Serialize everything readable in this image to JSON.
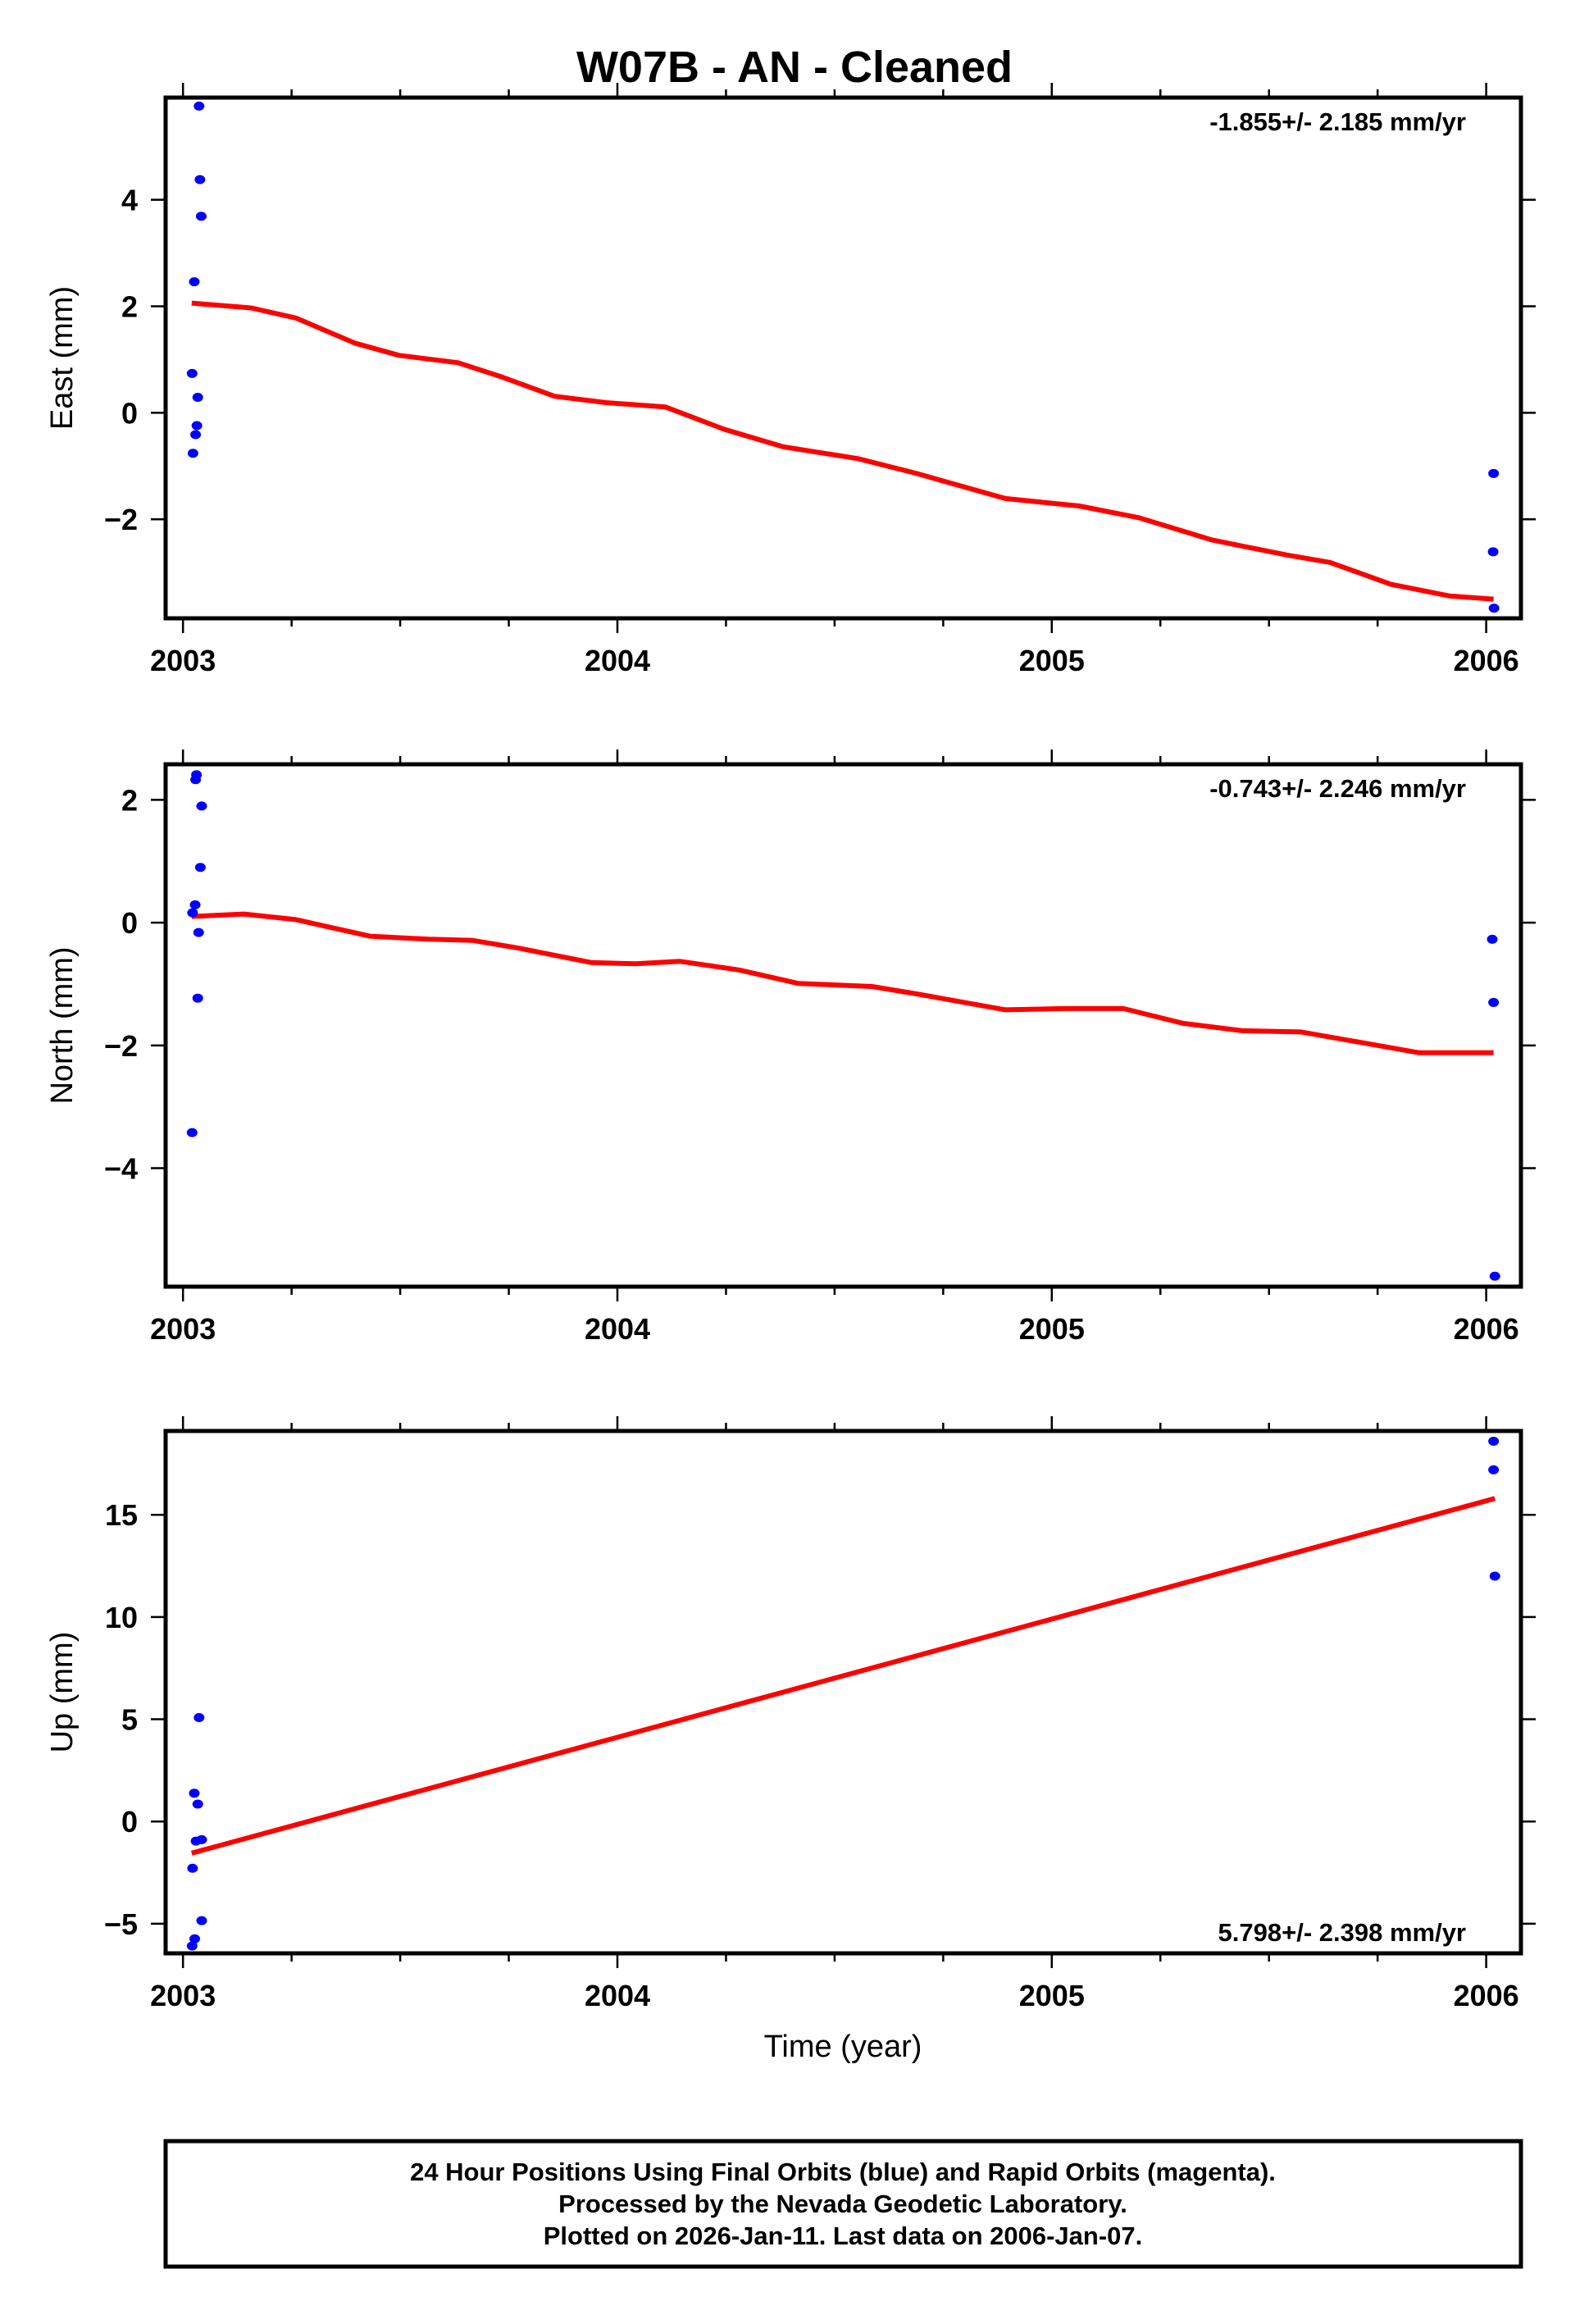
{
  "title": "W07B  - AN - Cleaned",
  "xlabel": "Time (year)",
  "footer": {
    "line1": "24 Hour Positions Using Final Orbits (blue) and Rapid Orbits (magenta).",
    "line2": "Processed by the Nevada Geodetic Laboratory.",
    "line3": "Plotted on 2026-Jan-11. Last data on 2006-Jan-07."
  },
  "colors": {
    "data": "#0000ff",
    "model": "#ff0000",
    "axis": "#000000"
  },
  "chart_data": [
    {
      "type": "scatter",
      "ylabel": "East (mm)",
      "rate_label": "-1.855+/- 2.185 mm/yr",
      "rate_position": "top-right",
      "xlim": [
        2002.96,
        2006.08
      ],
      "ylim": [
        -3.86,
        5.92
      ],
      "xticks": [
        2003,
        2004,
        2005,
        2006
      ],
      "yticks": [
        -2,
        0,
        2,
        4
      ],
      "points": [
        [
          2003.037,
          5.76
        ],
        [
          2003.039,
          4.38
        ],
        [
          2003.042,
          3.69
        ],
        [
          2003.026,
          2.46
        ],
        [
          2003.021,
          0.74
        ],
        [
          2003.034,
          0.29
        ],
        [
          2003.032,
          -0.24
        ],
        [
          2003.029,
          -0.41
        ],
        [
          2003.023,
          -0.76
        ],
        [
          2006.017,
          -1.14
        ],
        [
          2006.016,
          -2.61
        ],
        [
          2006.018,
          -3.67
        ]
      ],
      "model": [
        [
          2003.02,
          2.06
        ],
        [
          2003.157,
          1.97
        ],
        [
          2003.26,
          1.78
        ],
        [
          2003.395,
          1.31
        ],
        [
          2003.497,
          1.08
        ],
        [
          2003.633,
          0.94
        ],
        [
          2003.735,
          0.67
        ],
        [
          2003.855,
          0.31
        ],
        [
          2003.974,
          0.19
        ],
        [
          2004.11,
          0.11
        ],
        [
          2004.246,
          -0.31
        ],
        [
          2004.382,
          -0.64
        ],
        [
          2004.553,
          -0.86
        ],
        [
          2004.689,
          -1.14
        ],
        [
          2004.893,
          -1.61
        ],
        [
          2005.063,
          -1.75
        ],
        [
          2005.2,
          -1.97
        ],
        [
          2005.37,
          -2.39
        ],
        [
          2005.54,
          -2.67
        ],
        [
          2005.64,
          -2.81
        ],
        [
          2005.78,
          -3.22
        ],
        [
          2005.915,
          -3.44
        ],
        [
          2006.017,
          -3.5
        ]
      ]
    },
    {
      "type": "scatter",
      "ylabel": "North (mm)",
      "rate_label": "-0.743+/- 2.246 mm/yr",
      "rate_position": "top-right",
      "xlim": [
        2002.96,
        2006.08
      ],
      "ylim": [
        -5.93,
        2.58
      ],
      "xticks": [
        2003,
        2004,
        2005,
        2006
      ],
      "yticks": [
        -4,
        -2,
        0,
        2
      ],
      "points": [
        [
          2003.031,
          2.41
        ],
        [
          2003.029,
          2.33
        ],
        [
          2003.043,
          1.9
        ],
        [
          2003.04,
          0.9
        ],
        [
          2003.028,
          0.29
        ],
        [
          2003.022,
          0.16
        ],
        [
          2003.036,
          -0.16
        ],
        [
          2003.034,
          -1.23
        ],
        [
          2003.021,
          -3.42
        ],
        [
          2006.014,
          -0.27
        ],
        [
          2006.017,
          -1.3
        ],
        [
          2006.02,
          -5.76
        ]
      ],
      "model": [
        [
          2003.02,
          0.1
        ],
        [
          2003.14,
          0.14
        ],
        [
          2003.26,
          0.05
        ],
        [
          2003.43,
          -0.22
        ],
        [
          2003.565,
          -0.27
        ],
        [
          2003.667,
          -0.29
        ],
        [
          2003.769,
          -0.41
        ],
        [
          2003.94,
          -0.65
        ],
        [
          2004.042,
          -0.67
        ],
        [
          2004.144,
          -0.63
        ],
        [
          2004.28,
          -0.77
        ],
        [
          2004.416,
          -0.99
        ],
        [
          2004.586,
          -1.04
        ],
        [
          2004.689,
          -1.16
        ],
        [
          2004.893,
          -1.42
        ],
        [
          2005.029,
          -1.4
        ],
        [
          2005.165,
          -1.4
        ],
        [
          2005.302,
          -1.64
        ],
        [
          2005.438,
          -1.76
        ],
        [
          2005.574,
          -1.78
        ],
        [
          2005.71,
          -1.95
        ],
        [
          2005.846,
          -2.12
        ],
        [
          2006.017,
          -2.12
        ]
      ]
    },
    {
      "type": "scatter",
      "ylabel": "Up (mm)",
      "rate_label": "5.798+/- 2.398 mm/yr",
      "rate_position": "bottom-right",
      "xlim": [
        2002.96,
        2006.08
      ],
      "ylim": [
        -6.45,
        19.1
      ],
      "xticks": [
        2003,
        2004,
        2005,
        2006
      ],
      "yticks": [
        -5,
        0,
        5,
        10,
        15
      ],
      "points": [
        [
          2003.037,
          5.08
        ],
        [
          2003.026,
          1.38
        ],
        [
          2003.034,
          0.85
        ],
        [
          2003.043,
          -0.89
        ],
        [
          2003.03,
          -0.96
        ],
        [
          2003.022,
          -2.29
        ],
        [
          2003.043,
          -4.85
        ],
        [
          2003.027,
          -5.74
        ],
        [
          2003.021,
          -6.09
        ],
        [
          2006.017,
          18.6
        ],
        [
          2006.017,
          17.2
        ],
        [
          2006.02,
          12.0
        ]
      ],
      "model": [
        [
          2003.02,
          -1.55
        ],
        [
          2006.02,
          15.8
        ]
      ]
    }
  ]
}
